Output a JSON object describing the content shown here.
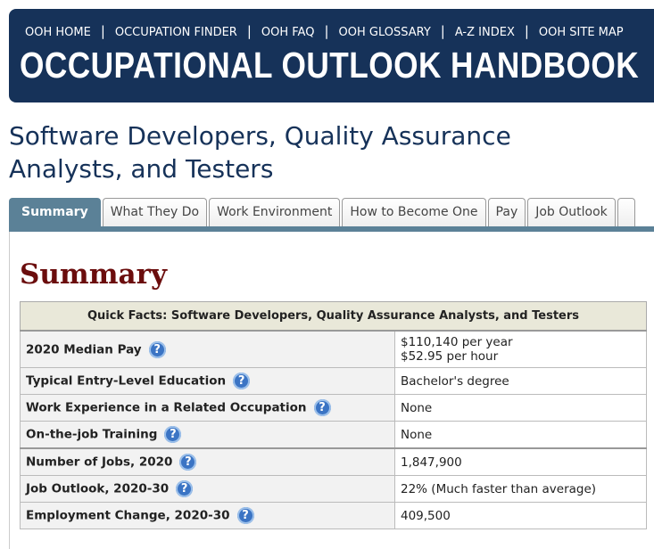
{
  "nav": [
    "OOH HOME",
    "OCCUPATION FINDER",
    "OOH FAQ",
    "OOH GLOSSARY",
    "A-Z INDEX",
    "OOH SITE MAP"
  ],
  "nav_separator": "|",
  "header": {
    "title": "OCCUPATIONAL OUTLOOK HANDBOOK"
  },
  "page_title": [
    "Software Developers, Quality Assurance",
    "Analysts, and Testers"
  ],
  "tabs": [
    "Summary",
    "What They Do",
    "Work Environment",
    "How to Become One",
    "Pay",
    "Job Outlook"
  ],
  "section_title": "Summary",
  "help_icon": "?",
  "table": {
    "caption": "Quick Facts: Software Developers, Quality Assurance Analysts, and Testers",
    "rows": [
      [
        "2020 Median Pay",
        [
          "$110,140 per year",
          "$52.95 per hour"
        ]
      ],
      [
        "Typical Entry-Level Education",
        [
          "Bachelor's degree"
        ]
      ],
      [
        "Work Experience in a Related Occupation",
        [
          "None"
        ]
      ],
      [
        "On-the-job Training",
        [
          "None"
        ]
      ],
      [
        "Number of Jobs, 2020",
        [
          "1,847,900"
        ]
      ],
      [
        "Job Outlook, 2020-30",
        [
          "22% (Much faster than average)"
        ]
      ],
      [
        "Employment Change, 2020-30",
        [
          "409,500"
        ]
      ]
    ]
  }
}
